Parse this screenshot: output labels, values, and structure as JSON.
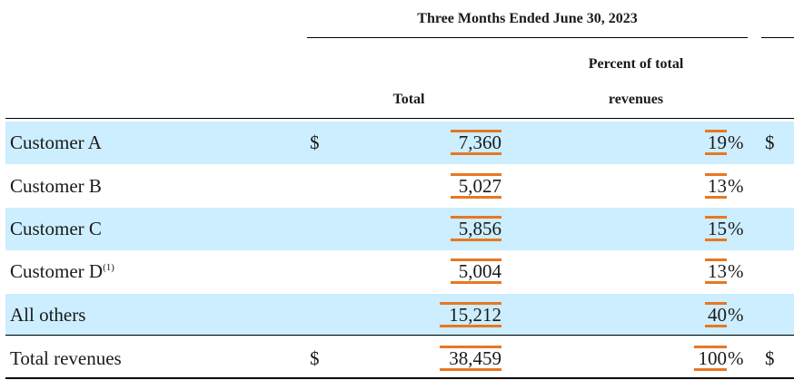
{
  "header": {
    "period": "Three Months Ended June 30, 2023",
    "col_total": "Total",
    "col_percent_line1": "Percent of total",
    "col_percent_line2": "revenues"
  },
  "rows": [
    {
      "label": "Customer A",
      "dollar": "$",
      "total": "7,360",
      "percent": "19",
      "pct_sign": "%",
      "dollar_right": "$",
      "shaded": true
    },
    {
      "label": "Customer B",
      "dollar": "",
      "total": "5,027",
      "percent": "13",
      "pct_sign": "%",
      "dollar_right": "",
      "shaded": false
    },
    {
      "label": "Customer C",
      "dollar": "",
      "total": "5,856",
      "percent": "15",
      "pct_sign": "%",
      "dollar_right": "",
      "shaded": true
    },
    {
      "label": "Customer D",
      "footnote": "(1)",
      "dollar": "",
      "total": "5,004",
      "percent": "13",
      "pct_sign": "%",
      "dollar_right": "",
      "shaded": false
    },
    {
      "label": "All others",
      "dollar": "",
      "total": "15,212",
      "percent": "40",
      "pct_sign": "%",
      "dollar_right": "",
      "shaded": true
    },
    {
      "label": "Total revenues",
      "dollar": "$",
      "total": "38,459",
      "percent": "100",
      "pct_sign": "%",
      "dollar_right": "$",
      "shaded": false
    }
  ],
  "colors": {
    "shade": "#cceeff",
    "highlight": "#e87722",
    "rule": "#000000"
  }
}
